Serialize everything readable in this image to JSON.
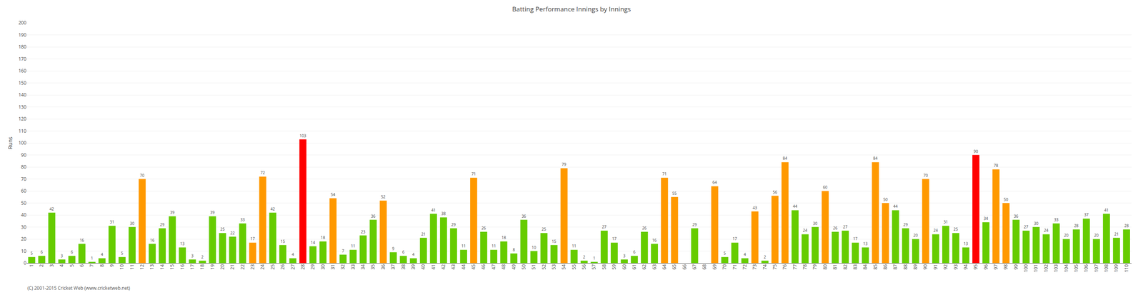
{
  "chart_data": {
    "type": "bar",
    "title": "Batting Performance Innings by Innings",
    "ylabel": "Runs",
    "footer": "(C) 2001-2015 Cricket Web (www.cricketweb.net)",
    "categories": [
      1,
      2,
      3,
      4,
      5,
      6,
      7,
      8,
      9,
      10,
      11,
      12,
      13,
      14,
      15,
      16,
      17,
      18,
      19,
      20,
      21,
      22,
      23,
      24,
      25,
      26,
      27,
      28,
      29,
      30,
      31,
      32,
      33,
      34,
      35,
      36,
      37,
      38,
      39,
      40,
      41,
      42,
      43,
      44,
      45,
      46,
      47,
      48,
      49,
      50,
      51,
      52,
      53,
      54,
      55,
      56,
      57,
      58,
      59,
      60,
      61,
      62,
      63,
      64,
      65,
      66,
      67,
      68,
      69,
      70,
      71,
      72,
      73,
      74,
      75,
      76,
      77,
      78,
      79,
      80,
      81,
      82,
      83,
      84,
      85,
      86,
      87,
      88,
      89,
      90,
      91,
      92,
      93,
      94,
      95,
      96,
      97,
      98,
      99,
      100,
      101,
      102,
      103,
      104,
      105,
      106,
      107,
      108,
      109,
      110
    ],
    "values": [
      5,
      6,
      42,
      3,
      6,
      16,
      1,
      4,
      31,
      5,
      30,
      70,
      16,
      29,
      39,
      13,
      3,
      2,
      39,
      25,
      22,
      33,
      17,
      72,
      42,
      15,
      4,
      103,
      14,
      18,
      54,
      7,
      11,
      23,
      36,
      52,
      9,
      6,
      4,
      21,
      41,
      38,
      29,
      11,
      71,
      26,
      11,
      18,
      8,
      36,
      10,
      25,
      15,
      79,
      11,
      2,
      1,
      27,
      17,
      3,
      6,
      26,
      16,
      71,
      55,
      0,
      29,
      0,
      64,
      5,
      17,
      4,
      43,
      2,
      56,
      84,
      44,
      24,
      30,
      60,
      26,
      27,
      17,
      13,
      84,
      50,
      44,
      29,
      20,
      70,
      24,
      31,
      25,
      13,
      90,
      34,
      78,
      50,
      36,
      27,
      30,
      24,
      33,
      20,
      28,
      37,
      20,
      41,
      21,
      28
    ],
    "value_labels": [
      "5",
      "6",
      "42",
      "3",
      "6",
      "16",
      "1",
      "4",
      "31",
      "5",
      "30",
      "70",
      "16",
      "29",
      "39",
      "13",
      "3",
      "2",
      "39",
      "25",
      "22",
      "33",
      "17",
      "72",
      "42",
      "15",
      "4",
      "103",
      "14",
      "18",
      "54",
      "7",
      "11",
      "23",
      "36",
      "52",
      "9",
      "6",
      "4",
      "21",
      "41",
      "38",
      "29",
      "11",
      "71",
      "26",
      "11",
      "18",
      "8",
      "36",
      "10",
      "25",
      "15",
      "79",
      "11",
      "2",
      "1",
      "27",
      "17",
      "3",
      "6",
      "26",
      "16",
      "71",
      "55",
      null,
      "29",
      null,
      "64",
      "5",
      "17",
      "4",
      "43",
      "2",
      "56",
      "84",
      "44",
      "24",
      "30",
      "60",
      "26",
      "27",
      "17",
      "13",
      "84",
      "50",
      "44",
      "29",
      "20",
      "70",
      "24",
      "31",
      "25",
      "13",
      "90",
      "34",
      "78",
      "50",
      "36",
      "27",
      "30",
      "24",
      "33",
      "20",
      "28",
      "37",
      "20",
      "41",
      "21",
      "28"
    ],
    "colors": [
      "#66cc00",
      "#66cc00",
      "#66cc00",
      "#66cc00",
      "#66cc00",
      "#66cc00",
      "#66cc00",
      "#66cc00",
      "#66cc00",
      "#66cc00",
      "#66cc00",
      "#ff9900",
      "#66cc00",
      "#66cc00",
      "#66cc00",
      "#66cc00",
      "#66cc00",
      "#66cc00",
      "#66cc00",
      "#66cc00",
      "#66cc00",
      "#66cc00",
      "#ff9900",
      "#ff9900",
      "#66cc00",
      "#66cc00",
      "#66cc00",
      "#ff0000",
      "#66cc00",
      "#66cc00",
      "#ff9900",
      "#66cc00",
      "#66cc00",
      "#66cc00",
      "#66cc00",
      "#ff9900",
      "#66cc00",
      "#66cc00",
      "#66cc00",
      "#66cc00",
      "#66cc00",
      "#66cc00",
      "#66cc00",
      "#66cc00",
      "#ff9900",
      "#66cc00",
      "#66cc00",
      "#66cc00",
      "#66cc00",
      "#66cc00",
      "#66cc00",
      "#66cc00",
      "#66cc00",
      "#ff9900",
      "#66cc00",
      "#66cc00",
      "#66cc00",
      "#66cc00",
      "#66cc00",
      "#66cc00",
      "#66cc00",
      "#66cc00",
      "#66cc00",
      "#ff9900",
      "#ff9900",
      "#66cc00",
      "#66cc00",
      "#66cc00",
      "#ff9900",
      "#66cc00",
      "#66cc00",
      "#66cc00",
      "#ff9900",
      "#66cc00",
      "#ff9900",
      "#ff9900",
      "#66cc00",
      "#66cc00",
      "#66cc00",
      "#ff9900",
      "#66cc00",
      "#66cc00",
      "#66cc00",
      "#66cc00",
      "#ff9900",
      "#ff9900",
      "#66cc00",
      "#66cc00",
      "#66cc00",
      "#ff9900",
      "#66cc00",
      "#66cc00",
      "#66cc00",
      "#66cc00",
      "#ff0000",
      "#66cc00",
      "#ff9900",
      "#ff9900",
      "#66cc00",
      "#66cc00",
      "#66cc00",
      "#66cc00",
      "#66cc00",
      "#66cc00",
      "#66cc00",
      "#66cc00",
      "#66cc00",
      "#66cc00",
      "#66cc00",
      "#66cc00"
    ],
    "data_labels": true,
    "ylim": [
      0,
      200
    ],
    "yticks": [
      0,
      10,
      20,
      30,
      40,
      50,
      60,
      70,
      80,
      90,
      100,
      110,
      120,
      130,
      140,
      150,
      160,
      170,
      180,
      190,
      200
    ],
    "grid": true
  }
}
